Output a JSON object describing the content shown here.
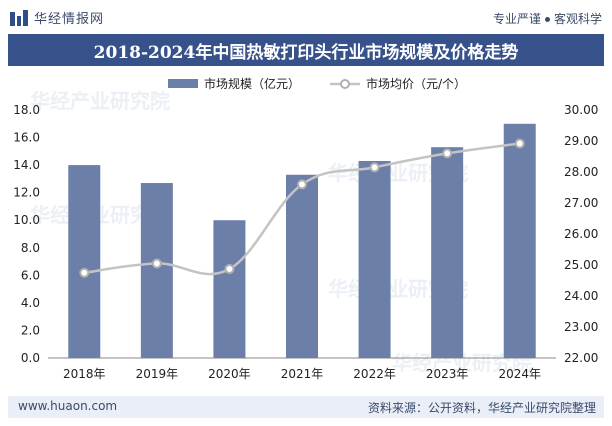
{
  "brand": {
    "name": "华经情报网",
    "slogan_left": "专业严谨",
    "slogan_right": "客观科学"
  },
  "footer": {
    "site": "www.huaon.com",
    "source": "资料来源：公开资料，华经产业研究院整理"
  },
  "watermark": "华经产业研究院",
  "colors": {
    "title_bg": "#37528a",
    "bar": "#6b7fa8",
    "line": "#c4c4c4",
    "marker_fill": "#ffffff",
    "marker_stroke": "#b0b0b0"
  },
  "chart_data": {
    "type": "bar+line",
    "title": "2018-2024年中国热敏打印头行业市场规模及价格走势",
    "categories": [
      "2018年",
      "2019年",
      "2020年",
      "2021年",
      "2022年",
      "2023年",
      "2024年"
    ],
    "series": [
      {
        "name": "市场规模（亿元）",
        "type": "bar",
        "axis": "left",
        "values": [
          14.0,
          12.7,
          10.0,
          13.3,
          14.3,
          15.3,
          17.0
        ]
      },
      {
        "name": "市场均价（元/个）",
        "type": "line",
        "axis": "right",
        "values": [
          24.75,
          25.05,
          24.87,
          27.6,
          28.15,
          28.6,
          28.92
        ]
      }
    ],
    "y_left": {
      "min": 0,
      "max": 18,
      "step": 2,
      "ticks": [
        "0.0",
        "2.0",
        "4.0",
        "6.0",
        "8.0",
        "10.0",
        "12.0",
        "14.0",
        "16.0",
        "18.0"
      ]
    },
    "y_right": {
      "min": 22,
      "max": 30,
      "step": 1,
      "ticks": [
        "22.00",
        "23.00",
        "24.00",
        "25.00",
        "26.00",
        "27.00",
        "28.00",
        "29.00",
        "30.00"
      ]
    },
    "legend_position": "top-center"
  }
}
